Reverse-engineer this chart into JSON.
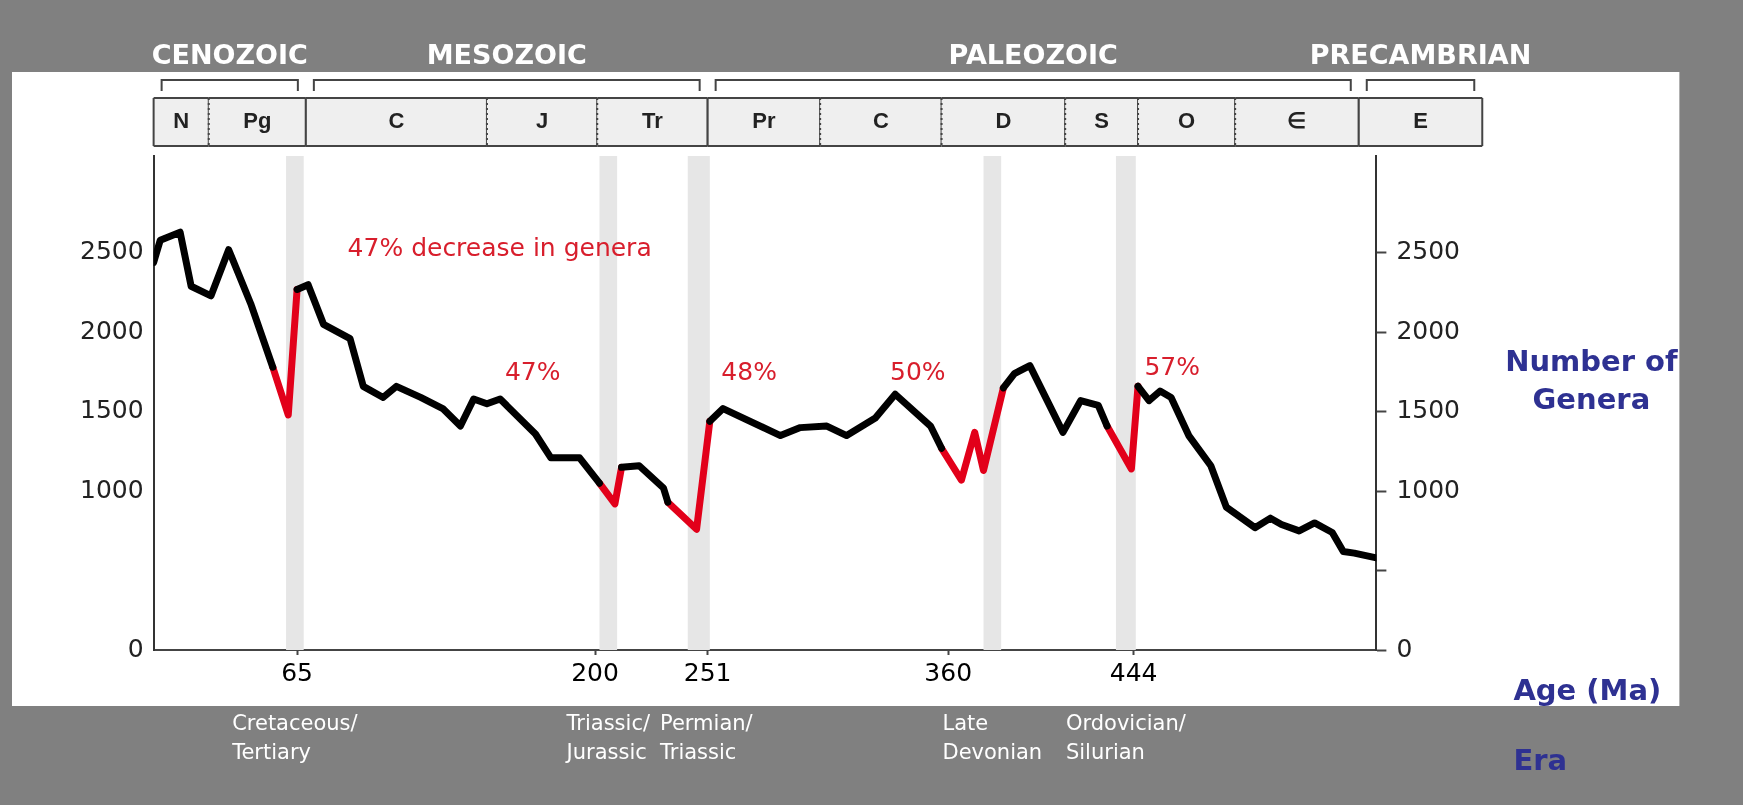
{
  "chart_data": {
    "type": "line",
    "xlabel": "Age (Ma)",
    "y2label": "Number of Genera",
    "xlim": [
      0,
      554
    ],
    "xticks": [
      65,
      200,
      251,
      360,
      444
    ],
    "ylim": [
      0,
      3110
    ],
    "yticks": [
      0,
      1000,
      1500,
      2000,
      2500
    ],
    "y2lim": [
      0,
      3110
    ],
    "y2ticks": [
      0,
      {
        "value": 500,
        "label": null
      },
      1000,
      1500,
      2000,
      2500
    ],
    "series": [
      {
        "color": "#000000",
        "x": [
          0,
          3,
          12,
          17,
          26,
          34,
          44,
          54,
          60,
          65,
          70,
          77,
          89,
          95,
          104,
          110,
          121,
          131,
          139,
          145,
          151,
          157,
          173,
          180,
          193,
          202,
          207,
          212,
          220,
          231,
          233,
          240,
          252,
          258,
          284,
          293,
          305,
          314,
          327,
          336,
          352,
          357,
          370,
          385,
          390,
          397,
          412,
          420,
          428,
          432,
          440,
          446,
          451,
          456,
          461,
          469,
          479,
          486,
          499,
          506,
          511,
          519,
          526,
          534,
          539,
          544,
          554
        ],
        "values": [
          2440,
          2580,
          2630,
          2290,
          2230,
          2520,
          2180,
          1780,
          null,
          2270,
          2300,
          2050,
          1960,
          1660,
          1590,
          1660,
          1590,
          1520,
          1410,
          1580,
          1550,
          1580,
          1360,
          1210,
          1210,
          1050,
          null,
          1150,
          1160,
          1020,
          930,
          null,
          1440,
          1520,
          1350,
          1400,
          1410,
          1350,
          1460,
          1610,
          1410,
          1270,
          null,
          1650,
          1740,
          1790,
          1370,
          1570,
          1540,
          1410,
          null,
          1660,
          1570,
          1630,
          1590,
          1350,
          1160,
          900,
          770,
          830,
          790,
          750,
          800,
          740,
          620,
          610,
          580
        ]
      },
      {
        "color": "#e2001a",
        "x": [
          54,
          61,
          65,
          100,
          202,
          209,
          212,
          220,
          233,
          246,
          252,
          300,
          357,
          366,
          372,
          376,
          385,
          400,
          432,
          443,
          446
        ],
        "values": [
          1780,
          1480,
          2270,
          null,
          1050,
          920,
          1150,
          null,
          930,
          760,
          1440,
          null,
          1270,
          1070,
          1370,
          1130,
          1650,
          null,
          1410,
          1140,
          1660
        ]
      }
    ],
    "bands": [
      {
        "axis": "x",
        "from": 60,
        "to": 68,
        "color": "#e6e6e6"
      },
      {
        "axis": "x",
        "from": 202,
        "to": 210,
        "color": "#e6e6e6"
      },
      {
        "axis": "x",
        "from": 242,
        "to": 252,
        "color": "#e6e6e6"
      },
      {
        "axis": "x",
        "from": 376,
        "to": 384,
        "color": "#e6e6e6"
      },
      {
        "axis": "x",
        "from": 436,
        "to": 445,
        "color": "#e6e6e6"
      }
    ],
    "annotations": [
      "47% decrease in genera",
      "47%",
      "48%",
      "50%",
      "57%",
      "Era",
      "CENOZOIC",
      "MESOZOIC",
      "PALEOZOIC",
      "PRECAMBRIAN",
      "N",
      "Pg",
      "C",
      "J",
      "Tr",
      "Pr",
      "C",
      "D",
      "S",
      "O",
      "∈",
      "E",
      "Cretaceous/\nTertiary",
      "Triassic/\nJurassic",
      "Permian/\nTriassic",
      "Late\nDevonian",
      "Ordovician/\nSilurian"
    ]
  }
}
